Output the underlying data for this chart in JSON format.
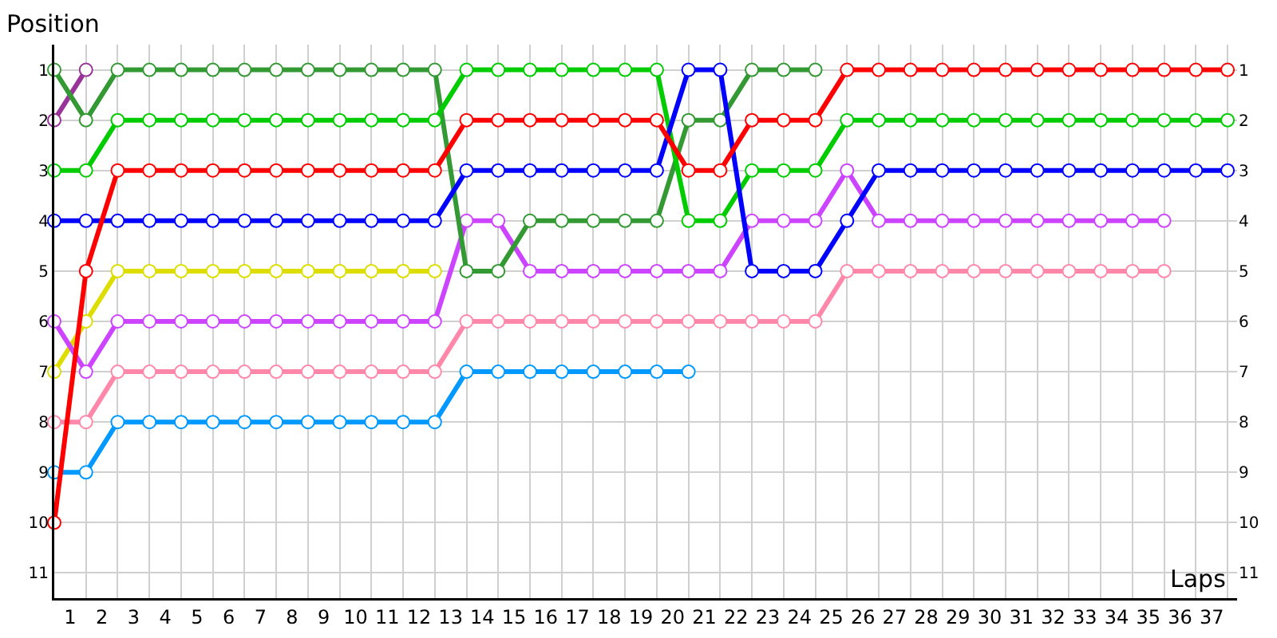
{
  "chart_data": {
    "type": "line",
    "xlabel": "Laps",
    "ylabel": "Position",
    "x": [
      0,
      1,
      2,
      3,
      4,
      5,
      6,
      7,
      8,
      9,
      10,
      11,
      12,
      13,
      14,
      15,
      16,
      17,
      18,
      19,
      20,
      21,
      22,
      23,
      24,
      25,
      26,
      27,
      28,
      29,
      30,
      31,
      32,
      33,
      34,
      35,
      36,
      37
    ],
    "xlim": [
      0,
      37.3
    ],
    "xticks": [
      {
        "value": 0.5,
        "label": "1"
      },
      {
        "value": 1.5,
        "label": "2"
      },
      {
        "value": 2.5,
        "label": "3"
      },
      {
        "value": 3.5,
        "label": "4"
      },
      {
        "value": 4.5,
        "label": "5"
      },
      {
        "value": 5.5,
        "label": "6"
      },
      {
        "value": 6.5,
        "label": "7"
      },
      {
        "value": 7.5,
        "label": "8"
      },
      {
        "value": 8.5,
        "label": "9"
      },
      {
        "value": 9.5,
        "label": "10"
      },
      {
        "value": 10.5,
        "label": "11"
      },
      {
        "value": 11.5,
        "label": "12"
      },
      {
        "value": 12.5,
        "label": "13"
      },
      {
        "value": 13.5,
        "label": "14"
      },
      {
        "value": 14.5,
        "label": "15"
      },
      {
        "value": 15.5,
        "label": "16"
      },
      {
        "value": 16.5,
        "label": "17"
      },
      {
        "value": 17.5,
        "label": "18"
      },
      {
        "value": 18.5,
        "label": "19"
      },
      {
        "value": 19.5,
        "label": "20"
      },
      {
        "value": 20.5,
        "label": "21"
      },
      {
        "value": 21.5,
        "label": "22"
      },
      {
        "value": 22.5,
        "label": "23"
      },
      {
        "value": 23.5,
        "label": "24"
      },
      {
        "value": 24.5,
        "label": "25"
      },
      {
        "value": 25.5,
        "label": "26"
      },
      {
        "value": 26.5,
        "label": "27"
      },
      {
        "value": 27.5,
        "label": "28"
      },
      {
        "value": 28.5,
        "label": "29"
      },
      {
        "value": 29.5,
        "label": "30"
      },
      {
        "value": 30.5,
        "label": "31"
      },
      {
        "value": 31.5,
        "label": "32"
      },
      {
        "value": 32.5,
        "label": "33"
      },
      {
        "value": 33.5,
        "label": "34"
      },
      {
        "value": 34.5,
        "label": "35"
      },
      {
        "value": 35.5,
        "label": "36"
      },
      {
        "value": 36.5,
        "label": "37"
      }
    ],
    "ylim": [
      11.5,
      0.5
    ],
    "yticks": [
      1,
      2,
      3,
      4,
      5,
      6,
      7,
      8,
      9,
      10,
      11
    ],
    "y2lim": [
      11.5,
      0.5
    ],
    "y2ticks": [
      1,
      2,
      3,
      4,
      5,
      6,
      7,
      8,
      9,
      10,
      11
    ],
    "grid": true,
    "marker": "circle",
    "line_style": "solid",
    "series": [
      {
        "color": "#ff88aa",
        "values": [
          8,
          8,
          7,
          7,
          7,
          7,
          7,
          7,
          7,
          7,
          7,
          7,
          7,
          6,
          6,
          6,
          6,
          6,
          6,
          6,
          6,
          6,
          6,
          6,
          6,
          5,
          5,
          5,
          5,
          5,
          5,
          5,
          5,
          5,
          5,
          5,
          null,
          null
        ]
      },
      {
        "color": "#0099ff",
        "values": [
          9,
          9,
          8,
          8,
          8,
          8,
          8,
          8,
          8,
          8,
          8,
          8,
          8,
          7,
          7,
          7,
          7,
          7,
          7,
          7,
          7,
          null,
          null,
          null,
          null,
          null,
          null,
          null,
          null,
          null,
          null,
          null,
          null,
          null,
          null,
          null,
          null,
          null
        ]
      },
      {
        "color": "#dddd00",
        "values": [
          7,
          6,
          5,
          5,
          5,
          5,
          5,
          5,
          5,
          5,
          5,
          5,
          5,
          null,
          null,
          null,
          null,
          null,
          null,
          null,
          null,
          null,
          null,
          null,
          null,
          null,
          null,
          null,
          null,
          null,
          null,
          null,
          null,
          null,
          null,
          null,
          null,
          null
        ]
      },
      {
        "color": "#cc44ff",
        "values": [
          6,
          7,
          6,
          6,
          6,
          6,
          6,
          6,
          6,
          6,
          6,
          6,
          6,
          4,
          4,
          5,
          5,
          5,
          5,
          5,
          5,
          5,
          4,
          4,
          4,
          3,
          4,
          4,
          4,
          4,
          4,
          4,
          4,
          4,
          4,
          4,
          null,
          null
        ]
      },
      {
        "color": "#993399",
        "values": [
          2,
          1,
          null,
          null,
          null,
          null,
          null,
          null,
          null,
          null,
          null,
          null,
          null,
          null,
          null,
          null,
          null,
          null,
          null,
          null,
          null,
          null,
          null,
          null,
          null,
          null,
          null,
          null,
          null,
          null,
          null,
          null,
          null,
          null,
          null,
          null,
          null,
          null
        ]
      },
      {
        "color": "#339933",
        "values": [
          1,
          2,
          1,
          1,
          1,
          1,
          1,
          1,
          1,
          1,
          1,
          1,
          1,
          5,
          5,
          4,
          4,
          4,
          4,
          4,
          2,
          2,
          1,
          1,
          1,
          null,
          null,
          null,
          null,
          null,
          null,
          null,
          null,
          null,
          null,
          null,
          null,
          null
        ]
      },
      {
        "color": "#00cc00",
        "values": [
          3,
          3,
          2,
          2,
          2,
          2,
          2,
          2,
          2,
          2,
          2,
          2,
          2,
          1,
          1,
          1,
          1,
          1,
          1,
          1,
          4,
          4,
          3,
          3,
          3,
          2,
          2,
          2,
          2,
          2,
          2,
          2,
          2,
          2,
          2,
          2,
          2,
          2
        ]
      },
      {
        "color": "#0000ff",
        "values": [
          4,
          4,
          4,
          4,
          4,
          4,
          4,
          4,
          4,
          4,
          4,
          4,
          4,
          3,
          3,
          3,
          3,
          3,
          3,
          3,
          1,
          1,
          5,
          5,
          5,
          4,
          3,
          3,
          3,
          3,
          3,
          3,
          3,
          3,
          3,
          3,
          3,
          3
        ]
      },
      {
        "color": "#ff0000",
        "values": [
          10,
          5,
          3,
          3,
          3,
          3,
          3,
          3,
          3,
          3,
          3,
          3,
          3,
          2,
          2,
          2,
          2,
          2,
          2,
          2,
          3,
          3,
          2,
          2,
          2,
          1,
          1,
          1,
          1,
          1,
          1,
          1,
          1,
          1,
          1,
          1,
          1,
          1
        ]
      }
    ]
  }
}
